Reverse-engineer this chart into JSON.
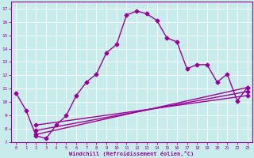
{
  "xlabel": "Windchill (Refroidissement éolien,°C)",
  "background_color": "#c8ecec",
  "line_color": "#9b009b",
  "ylim": [
    7,
    17.5
  ],
  "xlim": [
    -0.5,
    23.5
  ],
  "yticks": [
    7,
    8,
    9,
    10,
    11,
    12,
    13,
    14,
    15,
    16,
    17
  ],
  "xticks": [
    0,
    1,
    2,
    3,
    4,
    5,
    6,
    7,
    8,
    9,
    10,
    11,
    12,
    13,
    14,
    15,
    16,
    17,
    18,
    19,
    20,
    21,
    22,
    23
  ],
  "line1_x": [
    0,
    1,
    2,
    3,
    4,
    5,
    6,
    7,
    8,
    9,
    10,
    11,
    12,
    13,
    14,
    15,
    16,
    17,
    18,
    19,
    20,
    21,
    22,
    23
  ],
  "line1_y": [
    10.7,
    9.4,
    7.5,
    7.3,
    8.3,
    9.0,
    10.5,
    11.5,
    12.1,
    13.7,
    14.3,
    16.5,
    16.8,
    16.6,
    16.1,
    14.8,
    14.5,
    12.5,
    12.8,
    12.8,
    11.5,
    12.1,
    10.1,
    11.1
  ],
  "line2_x": [
    2,
    23
  ],
  "line2_y": [
    7.6,
    11.1
  ],
  "line3_x": [
    2,
    23
  ],
  "line3_y": [
    7.9,
    10.8
  ],
  "line4_x": [
    2,
    23
  ],
  "line4_y": [
    8.3,
    10.5
  ],
  "marker": "D",
  "markersize": 2.5,
  "linewidth": 1.0
}
